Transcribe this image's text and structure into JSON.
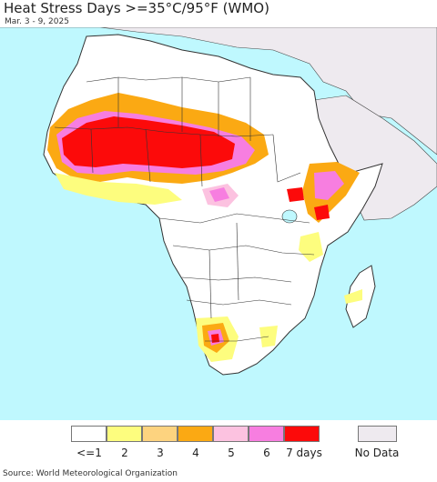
{
  "header": {
    "title": "Heat Stress Days >=35°C/95°F (WMO)",
    "date_range": "Mar. 3 - 9, 2025"
  },
  "legend": {
    "items": [
      {
        "label": "<=1",
        "color": "#ffffff"
      },
      {
        "label": "2",
        "color": "#fdfd7e"
      },
      {
        "label": "3",
        "color": "#fdd37f"
      },
      {
        "label": "4",
        "color": "#fba913"
      },
      {
        "label": "5",
        "color": "#fcc2e0"
      },
      {
        "label": "6",
        "color": "#f77ee0"
      },
      {
        "label": "7 days",
        "color": "#fc0a0a"
      }
    ],
    "no_data": {
      "label": "No Data",
      "color": "#eeeaef"
    }
  },
  "colors": {
    "ocean": "#bff8fe",
    "land": "#ffffff",
    "no_data_land": "#eeeaef",
    "border": "#333333"
  },
  "footer": {
    "source": "Source: World Meteorological Organization"
  }
}
